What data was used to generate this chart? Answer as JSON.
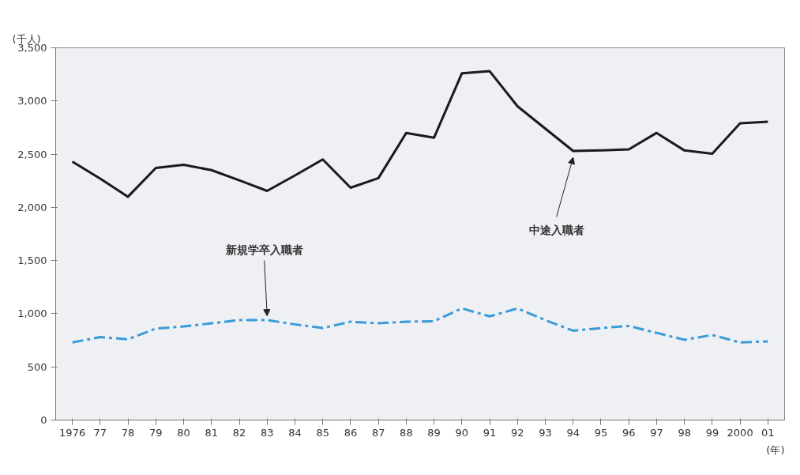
{
  "chart_data": {
    "type": "line",
    "ylabel": "(千人)",
    "xlabel": "(年)",
    "categories": [
      "1976",
      "77",
      "78",
      "79",
      "80",
      "81",
      "82",
      "83",
      "84",
      "85",
      "86",
      "87",
      "88",
      "89",
      "90",
      "91",
      "92",
      "93",
      "94",
      "95",
      "96",
      "97",
      "98",
      "99",
      "2000",
      "01"
    ],
    "series": [
      {
        "color": "#1a1a1a",
        "line_style": "solid",
        "values": [
          2430,
          2270,
          2100,
          2370,
          2400,
          2350,
          2255,
          2155,
          2300,
          2450,
          2185,
          2275,
          2700,
          2655,
          3260,
          3280,
          2950,
          2740,
          2530,
          2535,
          2545,
          2700,
          2535,
          2505,
          2790,
          2805
        ]
      },
      {
        "color": "#3a9ad9",
        "line_style": "dashed",
        "values": [
          730,
          780,
          760,
          860,
          880,
          910,
          940,
          940,
          900,
          865,
          925,
          910,
          925,
          930,
          1050,
          975,
          1050,
          940,
          840,
          865,
          885,
          820,
          755,
          800,
          730,
          740
        ]
      }
    ],
    "ylim": [
      0,
      3500
    ],
    "yticks": [
      {
        "value": 0,
        "label": "0"
      },
      {
        "value": 500,
        "label": "500"
      },
      {
        "value": 1000,
        "label": "1,000"
      },
      {
        "value": 1500,
        "label": "1,500"
      },
      {
        "value": 2000,
        "label": "2,000"
      },
      {
        "value": 2500,
        "label": "2,500"
      },
      {
        "value": 3000,
        "label": "3,000"
      },
      {
        "value": 3500,
        "label": "3,500"
      }
    ],
    "grid": false,
    "marker": "none",
    "annotations": [
      {
        "text": "新規学卒入職者",
        "x": "83",
        "y": 940
      },
      {
        "text": "中途入職者",
        "x": "94",
        "y": 2530
      }
    ]
  }
}
